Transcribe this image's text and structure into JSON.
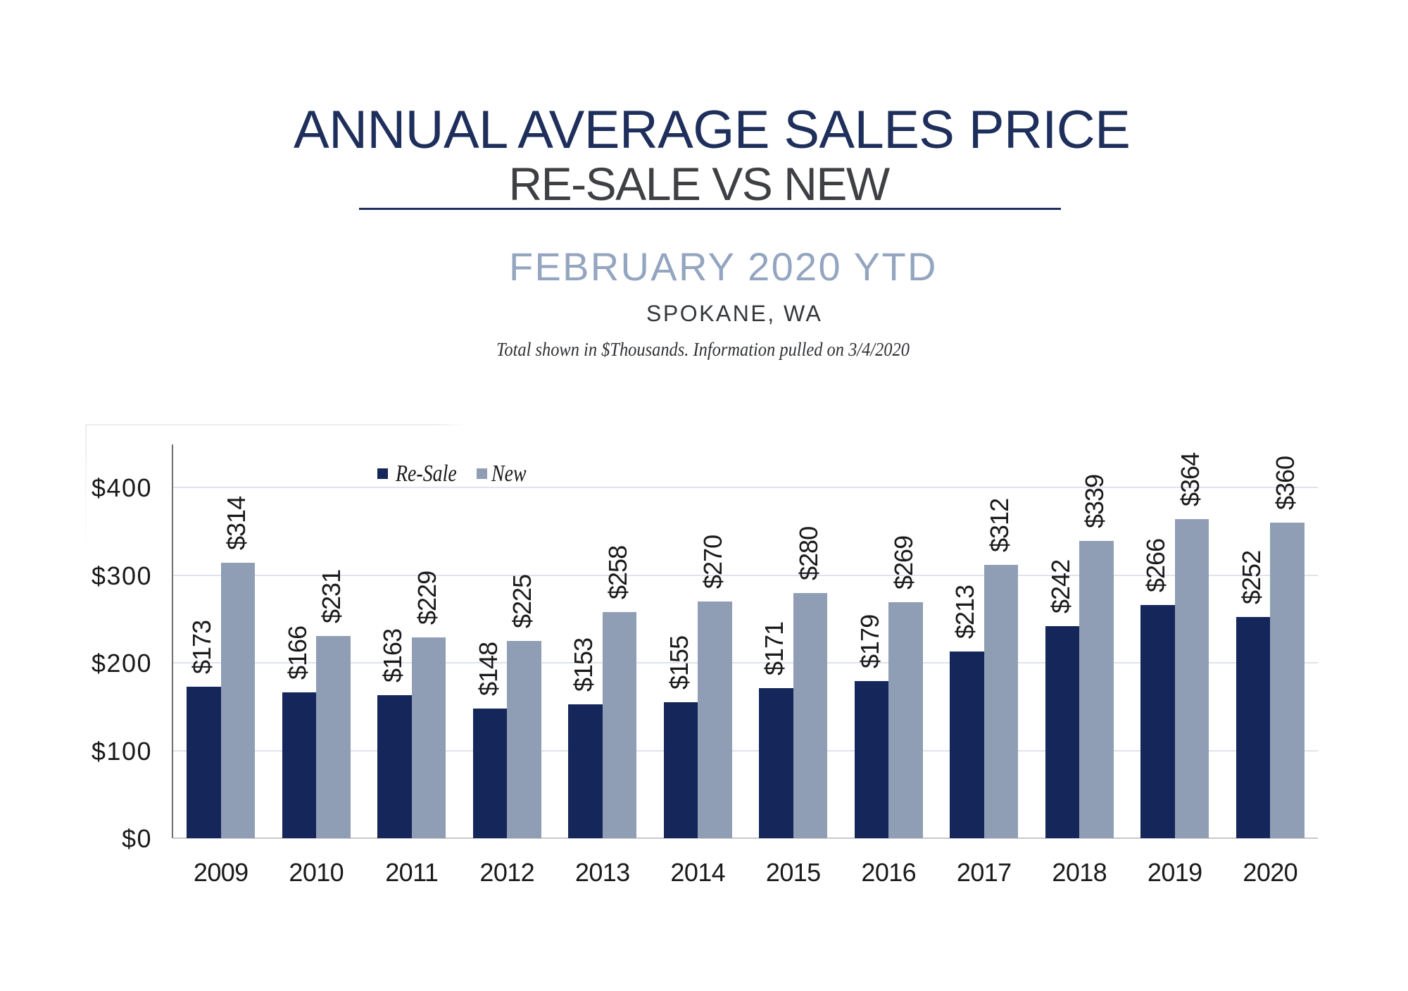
{
  "header": {
    "title": "ANNUAL AVERAGE SALES PRICE",
    "subtitle": "RE-SALE VS NEW",
    "period": "FEBRUARY 2020 YTD",
    "location": "SPOKANE, WA",
    "note": "Total shown in $Thousands. Information pulled on 3/4/2020"
  },
  "colors": {
    "title_navy": "#1F2F5C",
    "subtitle_gray": "#3E4043",
    "period_blue": "#94A5C0",
    "location_gray": "#35383B",
    "note_gray": "#2E3134",
    "resale_bar": "#14265A",
    "new_bar": "#8F9EB4",
    "gridline": "#E0E3EE",
    "axis_line": "#6F6F6F",
    "baseline": "#C8C8C8",
    "label_black": "#1A1A1A"
  },
  "chart_data": {
    "type": "bar",
    "title": "ANNUAL AVERAGE SALES PRICE",
    "subtitle": "RE-SALE VS NEW",
    "xlabel": "",
    "ylabel": "",
    "units": "$Thousands",
    "categories": [
      "2009",
      "2010",
      "2011",
      "2012",
      "2013",
      "2014",
      "2015",
      "2016",
      "2017",
      "2018",
      "2019",
      "2020"
    ],
    "series": [
      {
        "name": "Re-Sale",
        "values": [
          173,
          166,
          163,
          148,
          153,
          155,
          171,
          179,
          213,
          242,
          266,
          252
        ],
        "labels": [
          "$173",
          "$166",
          "$163",
          "$148",
          "$153",
          "$155",
          "$171",
          "$179",
          "$213",
          "$242",
          "$266",
          "$252"
        ],
        "color_key": "resale_bar"
      },
      {
        "name": "New",
        "values": [
          314,
          231,
          229,
          225,
          258,
          270,
          280,
          269,
          312,
          339,
          364,
          360
        ],
        "labels": [
          "$314",
          "$231",
          "$229",
          "$225",
          "$258",
          "$270",
          "$280",
          "$269",
          "$312",
          "$339",
          "$364",
          "$360"
        ],
        "color_key": "new_bar"
      }
    ],
    "ylim": [
      0,
      450
    ],
    "yticks": {
      "values": [
        0,
        100,
        200,
        300,
        400
      ],
      "labels": [
        "$0",
        "$100",
        "$200",
        "$300",
        "$400"
      ]
    },
    "grid": true,
    "legend_position": "top-inside-left",
    "value_label_rotation_deg": -90
  }
}
